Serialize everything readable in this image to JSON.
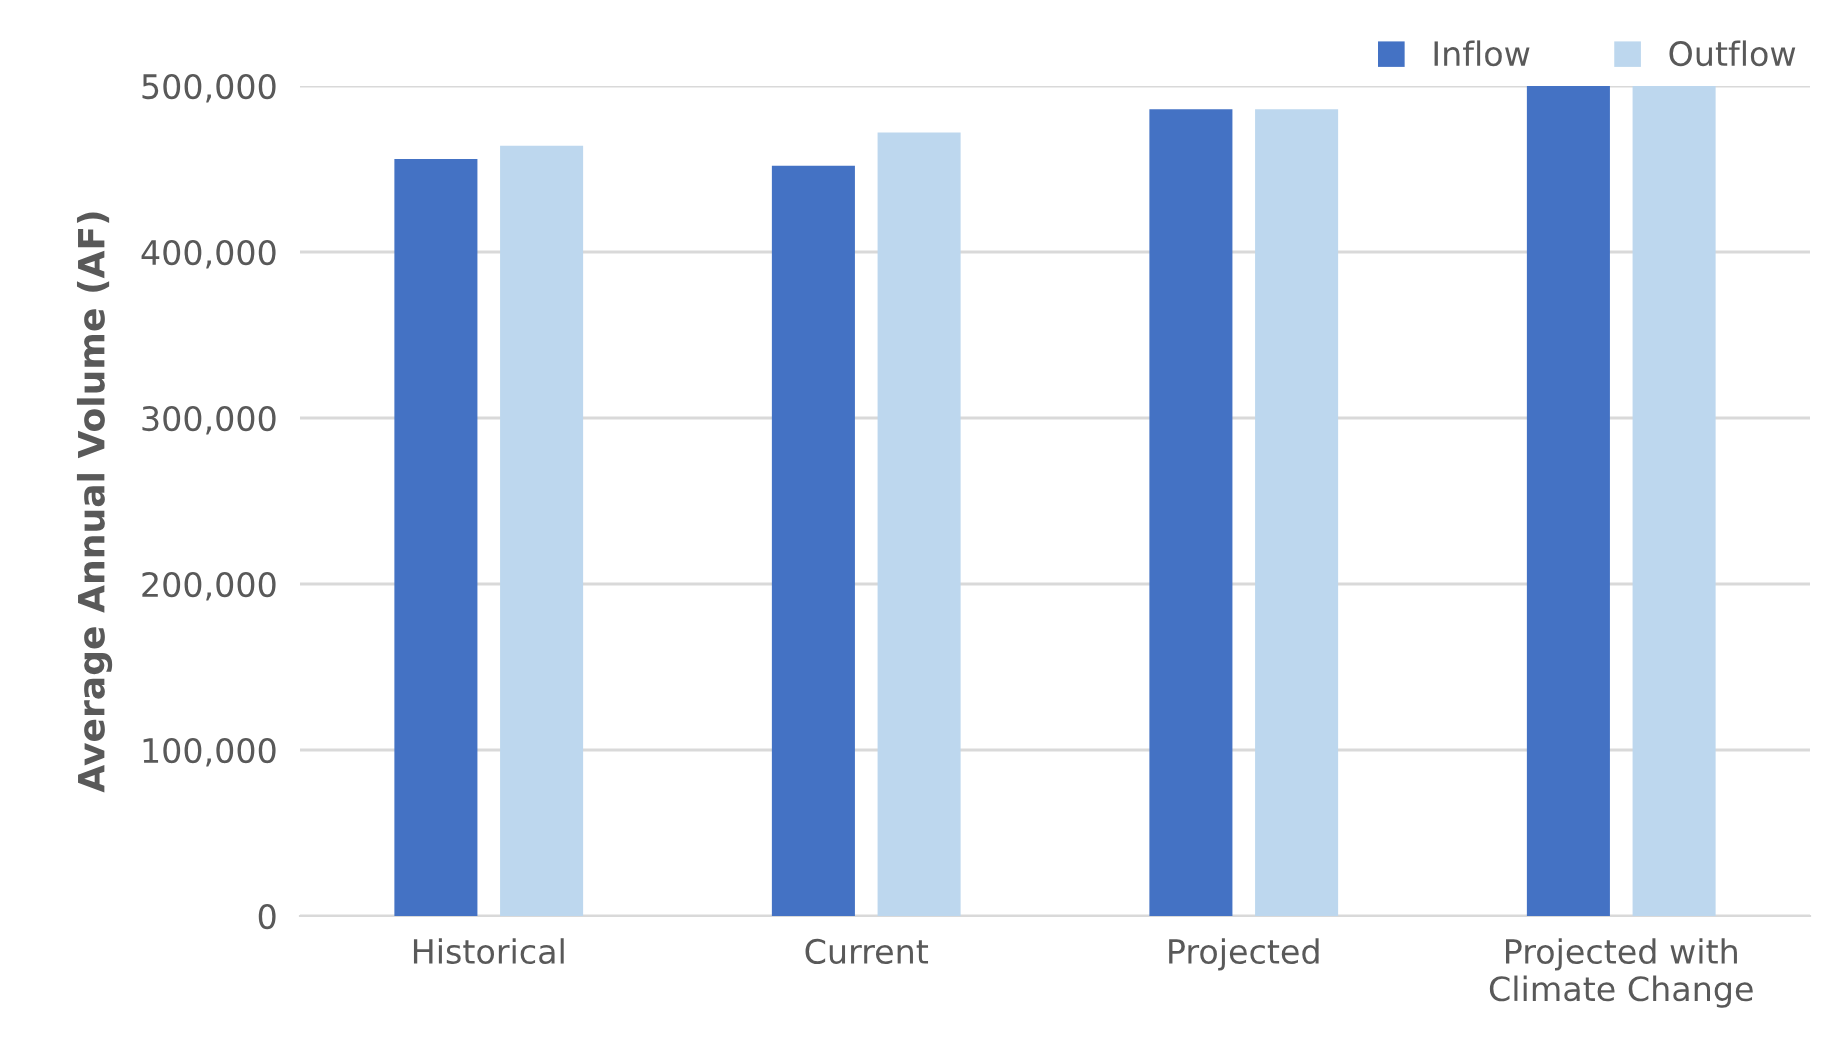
{
  "chart_data": {
    "type": "bar",
    "ylabel": "Average Annual Volume (AF)",
    "categories": [
      "Historical",
      "Current",
      "Projected",
      "Projected with\nClimate Change"
    ],
    "series": [
      {
        "name": "Inflow",
        "color": "#4472c4",
        "values": [
          456000,
          452000,
          486000,
          500000
        ]
      },
      {
        "name": "Outflow",
        "color": "#bdd7ee",
        "values": [
          464000,
          472000,
          486000,
          500000
        ]
      }
    ],
    "ylim": [
      0,
      500000
    ],
    "yticks": [
      {
        "value": 0,
        "label": "0"
      },
      {
        "value": 100000,
        "label": "100,000"
      },
      {
        "value": 200000,
        "label": "200,000"
      },
      {
        "value": 300000,
        "label": "300,000"
      },
      {
        "value": 400000,
        "label": "400,000"
      },
      {
        "value": 500000,
        "label": "500,000"
      }
    ],
    "grid": "y",
    "legend": "top right"
  }
}
